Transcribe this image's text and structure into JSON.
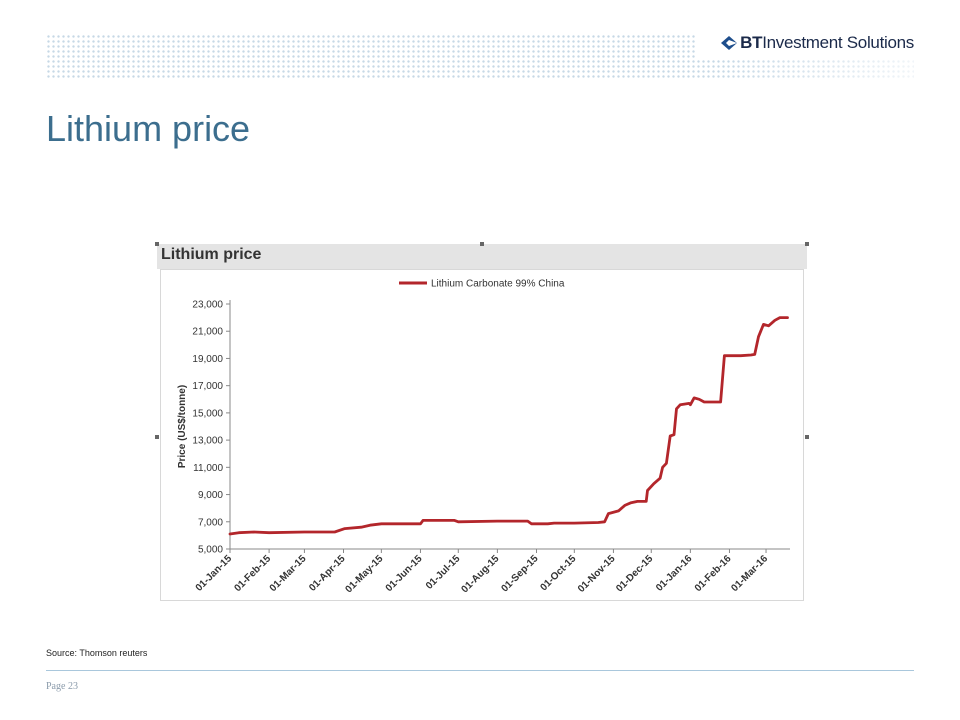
{
  "brand": {
    "prefix": "BT",
    "suffix": " Investment Solutions",
    "accent": "#1e4e8c"
  },
  "slide": {
    "title": "Lithium price",
    "source": "Source: Thomson reuters",
    "page": "Page 23"
  },
  "colors": {
    "title": "#3c6e8e",
    "series": "#b3262b",
    "divider": "#a9c7dc"
  },
  "chart_data": {
    "type": "line",
    "title": "Lithium price",
    "ylabel": "Price (US$/tonne)",
    "xlabel": "",
    "ylim": [
      5000,
      23000
    ],
    "yticks": [
      5000,
      7000,
      9000,
      11000,
      13000,
      15000,
      17000,
      19000,
      21000,
      23000
    ],
    "ytick_labels": [
      "5,000",
      "7,000",
      "9,000",
      "11,000",
      "13,000",
      "15,000",
      "17,000",
      "19,000",
      "21,000",
      "23,000"
    ],
    "xlim": [
      "2015-01-01",
      "2016-03-20"
    ],
    "xticks": [
      "2015-01-01",
      "2015-02-01",
      "2015-03-01",
      "2015-04-01",
      "2015-05-01",
      "2015-06-01",
      "2015-07-01",
      "2015-08-01",
      "2015-09-01",
      "2015-10-01",
      "2015-11-01",
      "2015-12-01",
      "2016-01-01",
      "2016-02-01",
      "2016-03-01"
    ],
    "xtick_labels": [
      "01-Jan-15",
      "01-Feb-15",
      "01-Mar-15",
      "01-Apr-15",
      "01-May-15",
      "01-Jun-15",
      "01-Jul-15",
      "01-Aug-15",
      "01-Sep-15",
      "01-Oct-15",
      "01-Nov-15",
      "01-Dec-15",
      "01-Jan-16",
      "01-Feb-16",
      "01-Mar-16"
    ],
    "grid": false,
    "legend_position": "top-center",
    "series": [
      {
        "name": "Lithium Carbonate 99% China",
        "color": "#b3262b",
        "points": [
          [
            "2015-01-01",
            6100
          ],
          [
            "2015-01-08",
            6200
          ],
          [
            "2015-01-20",
            6250
          ],
          [
            "2015-02-01",
            6200
          ],
          [
            "2015-03-01",
            6250
          ],
          [
            "2015-03-25",
            6250
          ],
          [
            "2015-04-02",
            6500
          ],
          [
            "2015-04-15",
            6600
          ],
          [
            "2015-04-22",
            6750
          ],
          [
            "2015-05-01",
            6850
          ],
          [
            "2015-05-15",
            6850
          ],
          [
            "2015-06-01",
            6850
          ],
          [
            "2015-06-03",
            7100
          ],
          [
            "2015-06-28",
            7100
          ],
          [
            "2015-07-01",
            7000
          ],
          [
            "2015-08-01",
            7050
          ],
          [
            "2015-08-25",
            7050
          ],
          [
            "2015-08-28",
            6850
          ],
          [
            "2015-09-10",
            6850
          ],
          [
            "2015-09-15",
            6900
          ],
          [
            "2015-10-01",
            6900
          ],
          [
            "2015-10-20",
            6950
          ],
          [
            "2015-10-25",
            7000
          ],
          [
            "2015-10-28",
            7600
          ],
          [
            "2015-11-05",
            7800
          ],
          [
            "2015-11-10",
            8200
          ],
          [
            "2015-11-15",
            8400
          ],
          [
            "2015-11-20",
            8500
          ],
          [
            "2015-11-27",
            8500
          ],
          [
            "2015-11-28",
            9300
          ],
          [
            "2015-12-03",
            9800
          ],
          [
            "2015-12-08",
            10200
          ],
          [
            "2015-12-10",
            11000
          ],
          [
            "2015-12-13",
            11300
          ],
          [
            "2015-12-16",
            13300
          ],
          [
            "2015-12-19",
            13400
          ],
          [
            "2015-12-21",
            15300
          ],
          [
            "2015-12-24",
            15600
          ],
          [
            "2015-12-31",
            15700
          ],
          [
            "2016-01-01",
            15600
          ],
          [
            "2016-01-04",
            16100
          ],
          [
            "2016-01-08",
            16000
          ],
          [
            "2016-01-12",
            15800
          ],
          [
            "2016-01-25",
            15800
          ],
          [
            "2016-01-28",
            19200
          ],
          [
            "2016-02-10",
            19200
          ],
          [
            "2016-02-18",
            19250
          ],
          [
            "2016-02-21",
            19300
          ],
          [
            "2016-02-24",
            20600
          ],
          [
            "2016-02-28",
            21500
          ],
          [
            "2016-03-03",
            21400
          ],
          [
            "2016-03-08",
            21800
          ],
          [
            "2016-03-12",
            22000
          ],
          [
            "2016-03-18",
            22000
          ]
        ]
      }
    ]
  }
}
